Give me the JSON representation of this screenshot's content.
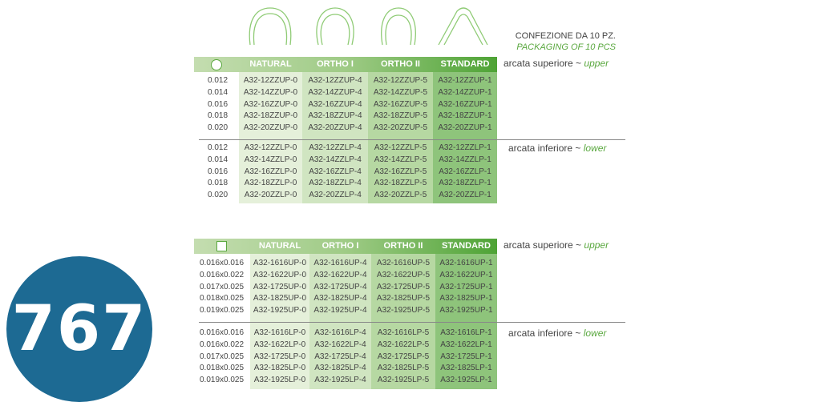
{
  "badge": {
    "number": "767",
    "color": "#1d6a93"
  },
  "packaging": {
    "it": "CONFEZIONE DA 10 PZ.",
    "en": "PACKAGING OF 10 PCS"
  },
  "arch_icons": [
    "natural-arch-icon",
    "ortho-i-arch-icon",
    "ortho-ii-arch-icon",
    "standard-arch-icon"
  ],
  "columns": [
    "NATURAL",
    "ORTHO I",
    "ORTHO II",
    "STANDARD"
  ],
  "labels": {
    "upper_it": "arcata superiore ~ ",
    "upper_en": "upper",
    "lower_it": "arcata inferiore  ~ ",
    "lower_en": "lower"
  },
  "colors": {
    "accent": "#5aa83f",
    "col_natural": "#e5f0da",
    "col_ortho1": "#d0e5c1",
    "col_ortho2": "#b6d8a2",
    "col_standard": "#8ec47b"
  },
  "tables": [
    {
      "shape": "round-wire-icon",
      "upper": [
        [
          "0.012",
          "A32-12ZZUP-0",
          "A32-12ZZUP-4",
          "A32-12ZZUP-5",
          "A32-12ZZUP-1"
        ],
        [
          "0.014",
          "A32-14ZZUP-0",
          "A32-14ZZUP-4",
          "A32-14ZZUP-5",
          "A32-14ZZUP-1"
        ],
        [
          "0.016",
          "A32-16ZZUP-0",
          "A32-16ZZUP-4",
          "A32-16ZZUP-5",
          "A32-16ZZUP-1"
        ],
        [
          "0.018",
          "A32-18ZZUP-0",
          "A32-18ZZUP-4",
          "A32-18ZZUP-5",
          "A32-18ZZUP-1"
        ],
        [
          "0.020",
          "A32-20ZZUP-0",
          "A32-20ZZUP-4",
          "A32-20ZZUP-5",
          "A32-20ZZUP-1"
        ]
      ],
      "lower": [
        [
          "0.012",
          "A32-12ZZLP-0",
          "A32-12ZZLP-4",
          "A32-12ZZLP-5",
          "A32-12ZZLP-1"
        ],
        [
          "0.014",
          "A32-14ZZLP-0",
          "A32-14ZZLP-4",
          "A32-14ZZLP-5",
          "A32-14ZZLP-1"
        ],
        [
          "0.016",
          "A32-16ZZLP-0",
          "A32-16ZZLP-4",
          "A32-16ZZLP-5",
          "A32-16ZZLP-1"
        ],
        [
          "0.018",
          "A32-18ZZLP-0",
          "A32-18ZZLP-4",
          "A32-18ZZLP-5",
          "A32-18ZZLP-1"
        ],
        [
          "0.020",
          "A32-20ZZLP-0",
          "A32-20ZZLP-4",
          "A32-20ZZLP-5",
          "A32-20ZZLP-1"
        ]
      ]
    },
    {
      "shape": "rectangular-wire-icon",
      "upper": [
        [
          "0.016x0.016",
          "A32-1616UP-0",
          "A32-1616UP-4",
          "A32-1616UP-5",
          "A32-1616UP-1"
        ],
        [
          "0.016x0.022",
          "A32-1622UP-0",
          "A32-1622UP-4",
          "A32-1622UP-5",
          "A32-1622UP-1"
        ],
        [
          "0.017x0.025",
          "A32-1725UP-0",
          "A32-1725UP-4",
          "A32-1725UP-5",
          "A32-1725UP-1"
        ],
        [
          "0.018x0.025",
          "A32-1825UP-0",
          "A32-1825UP-4",
          "A32-1825UP-5",
          "A32-1825UP-1"
        ],
        [
          "0.019x0.025",
          "A32-1925UP-0",
          "A32-1925UP-4",
          "A32-1925UP-5",
          "A32-1925UP-1"
        ]
      ],
      "lower": [
        [
          "0.016x0.016",
          "A32-1616LP-0",
          "A32-1616LP-4",
          "A32-1616LP-5",
          "A32-1616LP-1"
        ],
        [
          "0.016x0.022",
          "A32-1622LP-0",
          "A32-1622LP-4",
          "A32-1622LP-5",
          "A32-1622LP-1"
        ],
        [
          "0.017x0.025",
          "A32-1725LP-0",
          "A32-1725LP-4",
          "A32-1725LP-5",
          "A32-1725LP-1"
        ],
        [
          "0.018x0.025",
          "A32-1825LP-0",
          "A32-1825LP-4",
          "A32-1825LP-5",
          "A32-1825LP-1"
        ],
        [
          "0.019x0.025",
          "A32-1925LP-0",
          "A32-1925LP-4",
          "A32-1925LP-5",
          "A32-1925LP-1"
        ]
      ]
    }
  ]
}
